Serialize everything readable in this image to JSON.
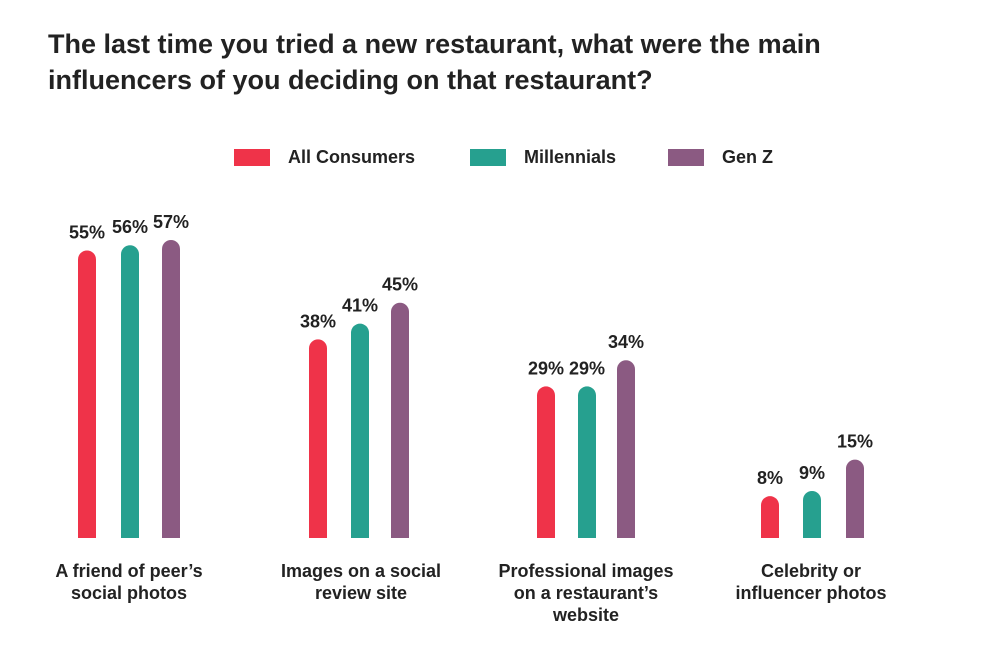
{
  "chart_data": {
    "type": "bar",
    "title": "The last time you tried a new restaurant, what were the main influencers of you deciding on that restaurant?",
    "categories": [
      "A friend of peer’s social photos",
      "Images on a social review site",
      "Professional images on a restaurant’s website",
      "Celebrity or influencer photos"
    ],
    "category_lines": [
      [
        "A friend of peer’s",
        "social photos"
      ],
      [
        "Images on a social",
        "review site"
      ],
      [
        "Professional images",
        "on a restaurant’s",
        "website"
      ],
      [
        "Celebrity or",
        "influencer photos"
      ]
    ],
    "series": [
      {
        "name": "All Consumers",
        "color": "#EF3349",
        "values": [
          55,
          38,
          29,
          8
        ],
        "labels": [
          "55%",
          "38%",
          "29%",
          "8%"
        ]
      },
      {
        "name": "Millennials",
        "color": "#26A08F",
        "values": [
          56,
          41,
          29,
          9
        ],
        "labels": [
          "56%",
          "41%",
          "29%",
          "9%"
        ]
      },
      {
        "name": "Gen Z",
        "color": "#8B5A82",
        "values": [
          57,
          45,
          34,
          15
        ],
        "labels": [
          "57%",
          "45%",
          "34%",
          "15%"
        ]
      }
    ],
    "ylim": [
      0,
      57
    ],
    "unit": "%",
    "grid": false,
    "legend_position": "top-center"
  }
}
